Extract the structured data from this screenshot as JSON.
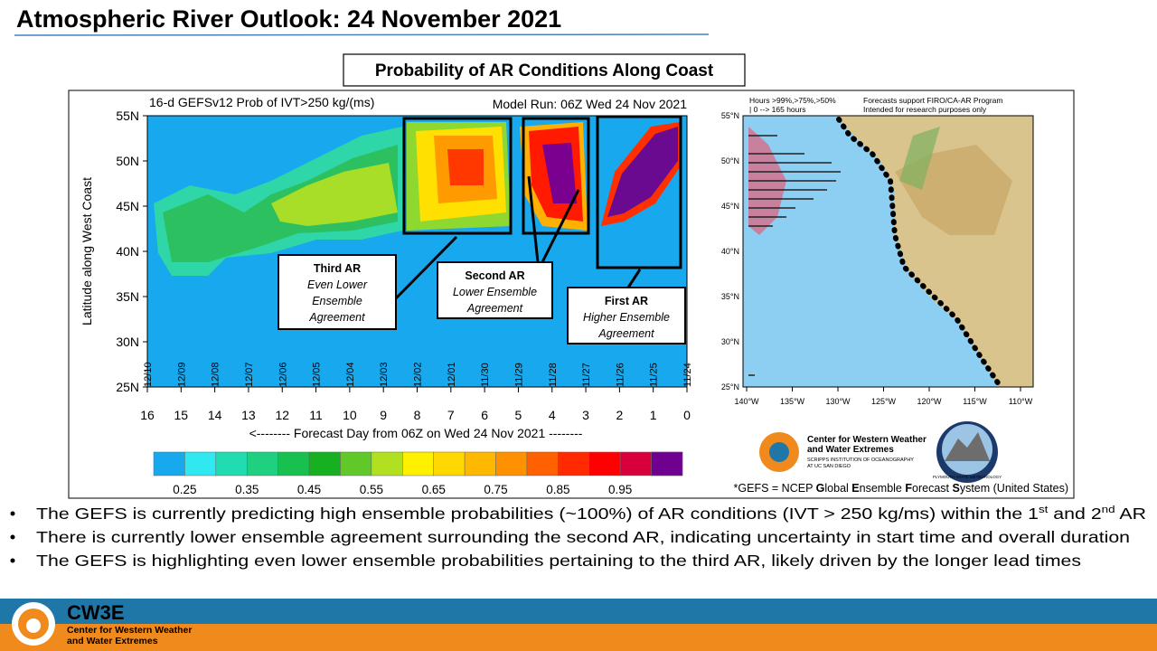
{
  "header": {
    "title": "Atmospheric River Outlook: 24 November 2021"
  },
  "panel_title": "Probability of AR Conditions Along Coast",
  "left_chart": {
    "title": "16-d GEFSv12 Prob of IVT>250 kg/(ms)",
    "model_run": "Model Run: 06Z Wed 24 Nov 2021",
    "y_label": "Latitude along West Coast",
    "y_ticks": [
      "55N",
      "50N",
      "45N",
      "40N",
      "35N",
      "30N",
      "25N"
    ],
    "date_ticks": [
      "12/10",
      "12/09",
      "12/08",
      "12/07",
      "12/06",
      "12/05",
      "12/04",
      "12/03",
      "12/02",
      "12/01",
      "11/30",
      "11/29",
      "11/28",
      "11/27",
      "11/26",
      "11/25",
      "11/24"
    ],
    "day_ticks": [
      "16",
      "15",
      "14",
      "13",
      "12",
      "11",
      "10",
      "9",
      "8",
      "7",
      "6",
      "5",
      "4",
      "3",
      "2",
      "1",
      "0"
    ],
    "x_label": "<-------- Forecast Day from 06Z on Wed 24 Nov 2021 --------",
    "colorbar_labels": [
      "0.25",
      "0.35",
      "0.45",
      "0.55",
      "0.65",
      "0.75",
      "0.85",
      "0.95"
    ],
    "annotations": [
      {
        "title": "Third AR",
        "lines": [
          "Even Lower",
          "Ensemble",
          "Agreement"
        ]
      },
      {
        "title": "Second AR",
        "lines": [
          "Lower Ensemble",
          "Agreement"
        ]
      },
      {
        "title": "First AR",
        "lines": [
          "Higher Ensemble",
          "Agreement"
        ]
      }
    ]
  },
  "right_chart": {
    "legend": [
      "Hours >99%,>75%,>50%",
      "| 0 --> 165 hours"
    ],
    "notes": [
      "Forecasts support FIRO/CA-AR Program",
      "Intended for research purposes only"
    ],
    "y_ticks": [
      "55°N",
      "50°N",
      "45°N",
      "40°N",
      "35°N",
      "30°N",
      "25°N"
    ],
    "x_ticks": [
      "140°W",
      "135°W",
      "130°W",
      "125°W",
      "120°W",
      "115°W",
      "110°W"
    ]
  },
  "logos": {
    "cw3e_name": [
      "Center for Western Weather",
      "and Water Extremes"
    ],
    "scripps": [
      "SCRIPPS INSTITUTION OF OCEANOGRAPHY",
      "AT UC SAN DIEGO"
    ],
    "plymouth": "PLYMOUTH STATE METEOROLOGY"
  },
  "footnote": [
    "*GEFS = NCEP ",
    "G",
    "lobal ",
    "E",
    "nsemble ",
    "F",
    "orecast ",
    "S",
    "ystem (United States)"
  ],
  "bullets": [
    [
      "The GEFS is currently predicting high ensemble probabilities (~100%) of AR conditions (IVT > 250 kg/ms) within the 1",
      "st",
      " and 2",
      "nd",
      " AR"
    ],
    [
      "There is currently lower ensemble agreement surrounding the second AR, indicating uncertainty in start time and overall duration"
    ],
    [
      "The GEFS is highlighting even lower ensemble probabilities pertaining to the third AR, likely driven by the longer lead times"
    ]
  ],
  "footer": {
    "brand": "CW3E",
    "name": [
      "Center for Western Weather",
      "and Water Extremes"
    ]
  }
}
